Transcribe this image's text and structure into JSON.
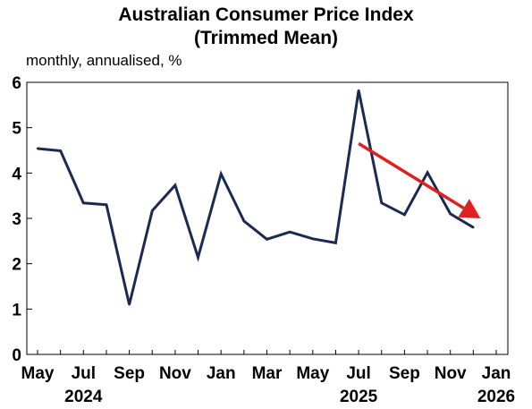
{
  "chart_data": {
    "type": "line",
    "title": "Australian Consumer Price Index",
    "title_line2": "(Trimmed Mean)",
    "ylabel": "monthly, annualised, %",
    "xlabel": "",
    "ylim": [
      0,
      6
    ],
    "yticks": [
      "0",
      "1",
      "2",
      "3",
      "4",
      "5",
      "6"
    ],
    "grid": false,
    "legend": "none",
    "x_tick_labels": [
      "May",
      "Jul",
      "Sep",
      "Nov",
      "Jan",
      "Mar",
      "May",
      "Jul",
      "Sep",
      "Nov",
      "Jan"
    ],
    "x_tick_months": [
      "2024-05",
      "2024-07",
      "2024-09",
      "2024-11",
      "2025-01",
      "2025-03",
      "2025-05",
      "2025-07",
      "2025-09",
      "2025-11",
      "2026-01"
    ],
    "year_labels": [
      {
        "label": "2024",
        "month": "2024-07"
      },
      {
        "label": "2025",
        "month": "2025-07"
      },
      {
        "label": "2026",
        "month": "2026-01"
      }
    ],
    "x_range": [
      "2024-05",
      "2026-01"
    ],
    "series": [
      {
        "color": "#1a2a52",
        "points": [
          {
            "x": "2024-05",
            "y": 4.54
          },
          {
            "x": "2024-06",
            "y": 4.49
          },
          {
            "x": "2024-07",
            "y": 3.34
          },
          {
            "x": "2024-08",
            "y": 3.3
          },
          {
            "x": "2024-09",
            "y": 1.1
          },
          {
            "x": "2024-10",
            "y": 3.17
          },
          {
            "x": "2024-11",
            "y": 3.73
          },
          {
            "x": "2024-12",
            "y": 2.14
          },
          {
            "x": "2025-01",
            "y": 3.98
          },
          {
            "x": "2025-02",
            "y": 2.94
          },
          {
            "x": "2025-03",
            "y": 2.54
          },
          {
            "x": "2025-04",
            "y": 2.7
          },
          {
            "x": "2025-05",
            "y": 2.55
          },
          {
            "x": "2025-06",
            "y": 2.46
          },
          {
            "x": "2025-07",
            "y": 5.82
          },
          {
            "x": "2025-08",
            "y": 3.34
          },
          {
            "x": "2025-09",
            "y": 3.08
          },
          {
            "x": "2025-10",
            "y": 4.01
          },
          {
            "x": "2025-11",
            "y": 3.1
          },
          {
            "x": "2025-12",
            "y": 2.8
          }
        ]
      }
    ],
    "annotations": [
      {
        "type": "arrow",
        "color": "#e02020",
        "from": {
          "x": "2025-07",
          "y": 4.65
        },
        "to": {
          "x": "2025-12",
          "y": 3.0
        }
      }
    ]
  }
}
